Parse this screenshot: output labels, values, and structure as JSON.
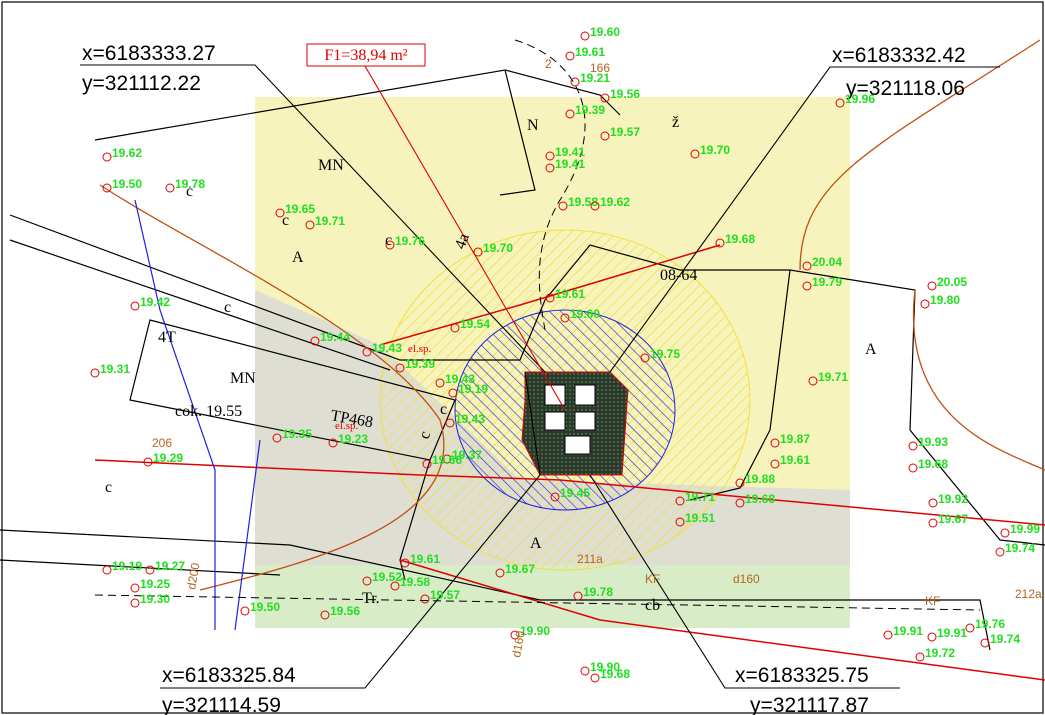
{
  "coordinates": [
    {
      "x": "x=6183333.27",
      "y": "y=321112.22"
    },
    {
      "x": "x=6183332.42",
      "y": "y=321118.06"
    },
    {
      "x": "x=6183325.84",
      "y": "y=321114.59"
    },
    {
      "x": "x=6183325.75",
      "y": "y=321117.87"
    }
  ],
  "area_label": "F1=38,94 m²",
  "elevations": [
    "19.60",
    "19.61",
    "19.21",
    "19.39",
    "19.56",
    "19.57",
    "19.41",
    "19.41",
    "19.70",
    "19.62",
    "19.50",
    "19.78",
    "19.65",
    "19.71",
    "19.76",
    "19.58",
    "19.62",
    "19.70",
    "19.68",
    "20.04",
    "19.79",
    "20.05",
    "19.80",
    "19.61",
    "19.60",
    "19.42",
    "19.54",
    "19.44",
    "19.43",
    "19.39",
    "19.75",
    "19.71",
    "19.31",
    "19.43",
    "19.19",
    "19.43",
    "19.35",
    "19.23",
    "19.37",
    "19.66",
    "19.87",
    "19.61",
    "19.93",
    "19.68",
    "19.88",
    "19.45",
    "19.71",
    "19.68",
    "19.51",
    "19.92",
    "19.67",
    "19.29",
    "19.61",
    "19.52",
    "19.58",
    "19.67",
    "19.27",
    "19.19",
    "19.25",
    "19.30",
    "19.50",
    "19.56",
    "19.57",
    "19.78",
    "19.90",
    "19.91",
    "19.91",
    "19.72",
    "19.74",
    "19.76",
    "19.90",
    "19.68",
    "19.96",
    "19.74",
    "19.99"
  ],
  "labels": [
    "MN",
    "MN",
    "A",
    "A",
    "A",
    "4T",
    "c",
    "c",
    "TP468",
    "cok. 19.55",
    "N",
    "ž",
    "4a",
    "cb",
    "Tr.",
    "c",
    "c",
    "c",
    "c",
    "c",
    "08-64"
  ],
  "utility_labels": [
    "166",
    "206",
    "211a",
    "d200",
    "d160",
    "d160",
    "212a",
    "KF",
    "KF",
    "2"
  ],
  "electric_labels": [
    "el.sp.",
    "el.sp."
  ]
}
